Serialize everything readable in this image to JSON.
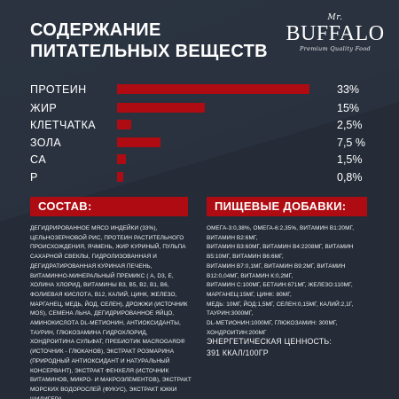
{
  "heading": {
    "line1": "СОДЕРЖАНИЕ",
    "line2": "ПИТАТЕЛЬНЫХ ВЕЩЕСТВ"
  },
  "logo": {
    "prefix": "Mr.",
    "brand": "BUFFALO",
    "tagline": "Premium Quality Food"
  },
  "chart_data": {
    "type": "bar",
    "categories": [
      "ПРОТЕИН",
      "ЖИР",
      "КЛЕТЧАТКА",
      "ЗОЛА",
      "CA",
      "P"
    ],
    "values": [
      33,
      15,
      2.5,
      7.5,
      1.5,
      0.8
    ],
    "value_labels": [
      "33%",
      "15%",
      "2,5%",
      "7,5 %",
      "1,5%",
      "0,8%"
    ],
    "bar_color": "#ae0c12"
  },
  "composition": {
    "title": "СОСТАВ:",
    "text": "ДЕГИДРИРОВАННОЕ МЯСО ИНДЕЙКИ (33%), ЦЕЛЬНОЗЕРНОВОЙ РИС, ПРОТЕИН РАСТИТЕЛЬНОГО ПРОИСХОЖДЕНИЯ, ЯЧМЕНЬ, ЖИР КУРИНЫЙ, ПУЛЬПА САХАРНОЙ СВЕКЛЫ, ГИДРОЛИЗОВАННАЯ И ДЕГИДРАТИРОВАННАЯ КУРИНАЯ ПЕЧЕНЬ, ВИТАМИННО-МИНЕРАЛЬНЫЙ ПРЕМИКС ( A, D3, E, ХОЛИНА ХЛОРИД, ВИТАМИНЫ В3, В5, В2, В1, В6, ФОЛИЕВАЯ КИСЛОТА, В12, КАЛИЙ, ЦИНК, ЖЕЛЕЗО, МАРГАНЕЦ, МЕДЬ, ЙОД, СЕЛЕН), ДРОЖЖИ (ИСТОЧНИК MOS), СЕМЕНА ЛЬНА, ДЕГИДРИРОВАННОЕ ЯЙЦО, АМИНОКИСЛОТА DL-МЕТИОНИН, АНТИОКСИДАНТЫ, ТАУРИН, ГЛЮКОЗАМИНА ГИДРОХЛОРИД, ХОНДРОИТИНА СУЛЬФАТ, ПРЕБИОТИК MACROGARD® (ИСТОЧНИК - ГЛЮКАНОВ), ЭКСТРАКТ РОЗМАРИНА (ПРИРОДНЫЙ АНТИОКСИДАНТ И НАТУРАЛЬНЫЙ КОНСЕРВАНТ), ЭКСТРАКТ ФЕНХЕЛЯ (ИСТОЧНИК ВИТАМИНОВ, МИКРО- И МАКРОЭЛЕМЕНТОВ), ЭКСТРАКТ МОРСКИХ ВОДОРОСЛЕЙ (ФУКУС), ЭКСТРАКТ ЮККИ ШИДИГЕРА"
  },
  "additives": {
    "title": "ПИЩЕВЫЕ ДОБАВКИ:",
    "lines": [
      "ОМЕГА-3:0,38%, ОМЕГА-6:2,35%, ВИТАМИН В1:20МГ,",
      "ВИТАМИН В2:6МГ,",
      "ВИТАМИН В3:60МГ, ВИТАМИН В4:2208МГ, ВИТАМИН",
      "В5:10МГ, ВИТАМИН В6:6МГ,",
      "ВИТАМИН В7:0,1МГ, ВИТАМИН В9:2МГ, ВИТАМИН",
      "В12:0,04МГ, ВИТАМИН К:0,2МГ,",
      "ВИТАМИН С:100МГ, БЕТАИН:671МГ, ЖЕЛЕЗО:110МГ,",
      "МАРГАНЕЦ:15МГ, ЦИНК: 80МГ,",
      "МЕДЬ: 10МГ, ЙОД:1,5МГ, СЕЛЕН:0,15МГ, КАЛИЙ:2,1Г,",
      "ТАУРИН:3000МГ,",
      "DL-МЕТИОНИН:1000МГ, ГЛЮКОЗАМИН: 300МГ,",
      "ХОНДРОИТИН:200МГ"
    ]
  },
  "energy": {
    "label": "ЭНЕРГЕТИЧЕСКАЯ ЦЕННОСТЬ:",
    "value": "391 ККАЛ/100ГР"
  }
}
